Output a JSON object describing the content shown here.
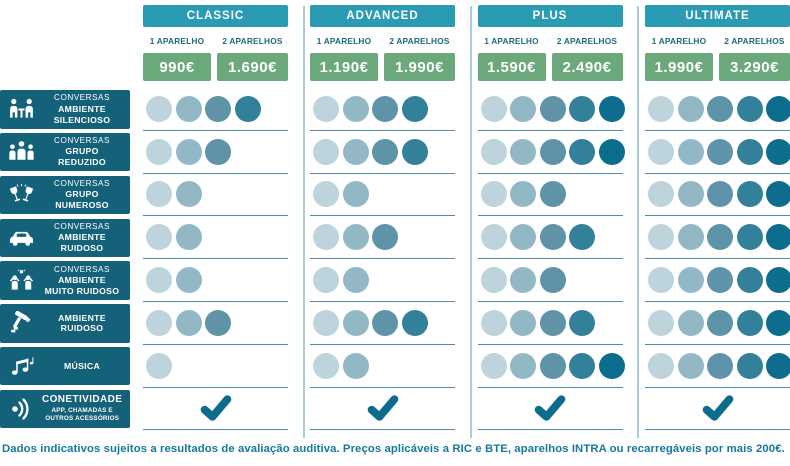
{
  "plans": [
    {
      "name": "CLASSIC",
      "price_1": "990€",
      "price_2": "1.690€"
    },
    {
      "name": "ADVANCED",
      "price_1": "1.190€",
      "price_2": "1.990€"
    },
    {
      "name": "PLUS",
      "price_1": "1.590€",
      "price_2": "2.490€"
    },
    {
      "name": "ULTIMATE",
      "price_1": "1.990€",
      "price_2": "3.290€"
    }
  ],
  "price_labels": {
    "one": "1 APARELHO",
    "two": "2 APARELHOS"
  },
  "features": [
    {
      "icon": "conversation-table-icon",
      "pre": "CONVERSAS",
      "title_lines": [
        "AMBIENTE",
        "SILENCIOSO"
      ]
    },
    {
      "icon": "group-people-icon",
      "pre": "CONVERSAS",
      "title_lines": [
        "GRUPO",
        "REDUZIDO"
      ]
    },
    {
      "icon": "toast-glasses-icon",
      "pre": "CONVERSAS",
      "title_lines": [
        "GRUPO",
        "NUMEROSO"
      ]
    },
    {
      "icon": "car-icon",
      "pre": "CONVERSAS",
      "title_lines": [
        "AMBIENTE",
        "RUIDOSO"
      ]
    },
    {
      "icon": "party-crowd-icon",
      "pre": "CONVERSAS",
      "title_lines": [
        "AMBIENTE",
        "MUITO RUIDOSO"
      ]
    },
    {
      "icon": "tools-hammer-icon",
      "title_lines": [
        "AMBIENTE",
        "RUIDOSO"
      ]
    },
    {
      "icon": "music-notes-icon",
      "title_lines": [
        "MÚSICA"
      ]
    },
    {
      "icon": "connectivity-waves-icon",
      "title_lines": [
        "CONETIVIDADE"
      ],
      "big_title": true,
      "sub_lines": [
        "APP, CHAMADAS E",
        "OUTROS ACESSÓRIOS"
      ]
    }
  ],
  "chart_data": {
    "type": "table",
    "rating_scale_max": 5,
    "columns": [
      "CLASSIC",
      "ADVANCED",
      "PLUS",
      "ULTIMATE"
    ],
    "prices_1_aparelho": [
      "990€",
      "1.190€",
      "1.590€",
      "1.990€"
    ],
    "prices_2_aparelhos": [
      "1.690€",
      "1.990€",
      "2.490€",
      "3.290€"
    ],
    "rows": [
      {
        "label": "CONVERSAS AMBIENTE SILENCIOSO",
        "values": [
          4,
          4,
          5,
          5
        ]
      },
      {
        "label": "CONVERSAS GRUPO REDUZIDO",
        "values": [
          3,
          4,
          5,
          5
        ]
      },
      {
        "label": "CONVERSAS GRUPO NUMEROSO",
        "values": [
          2,
          2,
          3,
          5
        ]
      },
      {
        "label": "CONVERSAS AMBIENTE RUIDOSO",
        "values": [
          2,
          3,
          4,
          5
        ]
      },
      {
        "label": "CONVERSAS AMBIENTE MUITO RUIDOSO",
        "values": [
          2,
          2,
          3,
          5
        ]
      },
      {
        "label": "AMBIENTE RUIDOSO",
        "values": [
          3,
          4,
          4,
          5
        ]
      },
      {
        "label": "MÚSICA",
        "values": [
          1,
          2,
          5,
          5
        ]
      },
      {
        "label": "CONETIVIDADE APP, CHAMADAS E OUTROS ACESSÓRIOS",
        "values": [
          "check",
          "check",
          "check",
          "check"
        ]
      }
    ]
  },
  "footer": "Dados indicativos sujeitos a resultados de avaliação auditiva. Preços aplicáveis a RIC e BTE, aparelhos INTRA ou recarregáveis por mais 200€.",
  "colors": {
    "header_teal": "#2b9ab3",
    "price_green": "#6ba87c",
    "label_bg": "#14617a",
    "unit_label_text": "#1d6a7e",
    "dot_scale": [
      "#bdd4dc",
      "#92b8c5",
      "#5e93a8",
      "#33809a",
      "#0d6d8e"
    ],
    "separator": "#4d8ea6",
    "divider": "#a8cdd8",
    "check": "#0c6c8d",
    "footer_text": "#15789f"
  }
}
